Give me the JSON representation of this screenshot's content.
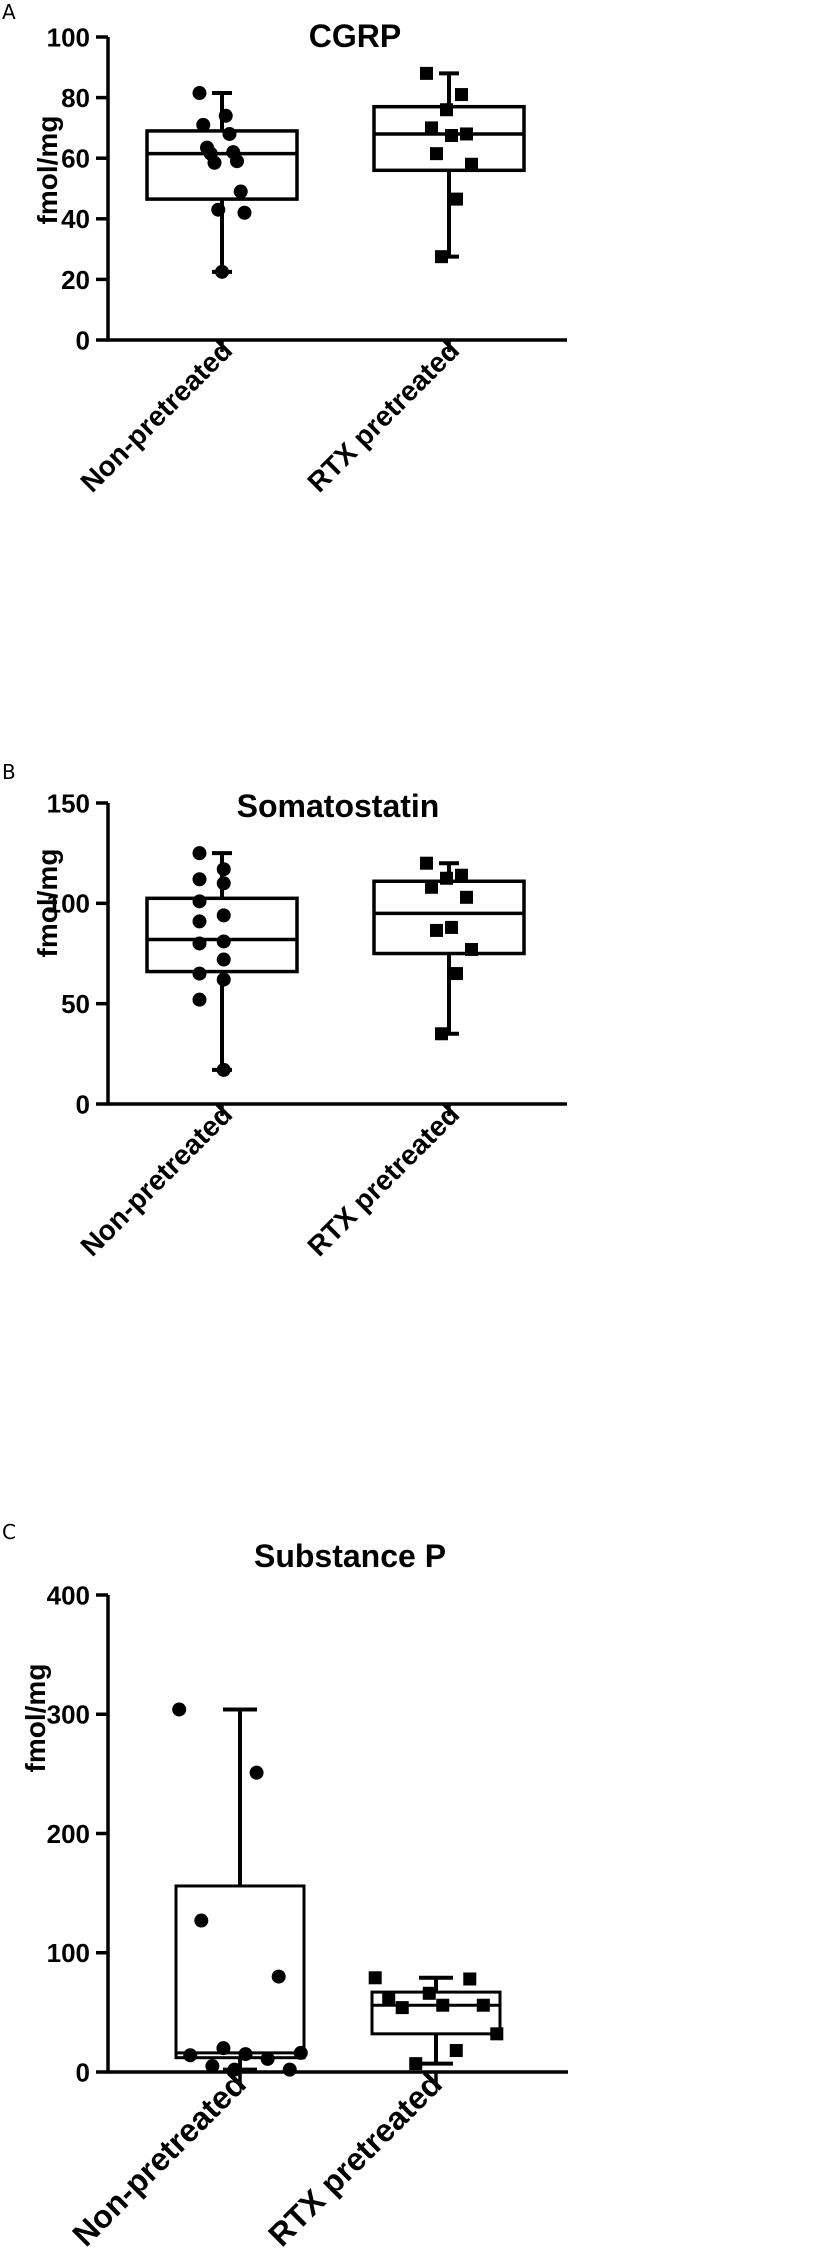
{
  "chart_data": [
    {
      "type": "box",
      "panel": "A",
      "title": "CGRP",
      "ylabel": "fmol/mg",
      "xlabel": "",
      "ylim": [
        0,
        100
      ],
      "yticks": [
        0,
        20,
        40,
        60,
        80,
        100
      ],
      "categories": [
        "Non-pretreated",
        "RTX pretreated"
      ],
      "series": [
        {
          "marker": "circle",
          "box": {
            "min": 22.5,
            "q1": 46.5,
            "median": 61.5,
            "q3": 69,
            "max": 81.5
          },
          "points": [
            81.5,
            74,
            71,
            68,
            63.5,
            62,
            61.5,
            59,
            58.5,
            49,
            43,
            42,
            22.5
          ]
        },
        {
          "marker": "square",
          "box": {
            "min": 27.5,
            "q1": 56,
            "median": 68,
            "q3": 77,
            "max": 88
          },
          "points": [
            88,
            81,
            76,
            70,
            68,
            67.5,
            61.5,
            58,
            46.5,
            27.5
          ]
        }
      ]
    },
    {
      "type": "box",
      "panel": "B",
      "title": "Somatostatin",
      "ylabel": "fmol/mg",
      "xlabel": "",
      "ylim": [
        0,
        150
      ],
      "yticks": [
        0,
        50,
        100,
        150
      ],
      "categories": [
        "Non-pretreated",
        "RTX pretreated"
      ],
      "series": [
        {
          "marker": "circle",
          "box": {
            "min": 17,
            "q1": 66,
            "median": 82,
            "q3": 102.5,
            "max": 125
          },
          "points": [
            125,
            117,
            112,
            110,
            101,
            94,
            91,
            81,
            80,
            72,
            65,
            62,
            52,
            17
          ]
        },
        {
          "marker": "square",
          "box": {
            "min": 35,
            "q1": 75,
            "median": 95,
            "q3": 111,
            "max": 120
          },
          "points": [
            120,
            114,
            112.5,
            108,
            103,
            88,
            86.5,
            77,
            65,
            35
          ]
        }
      ]
    },
    {
      "type": "box",
      "panel": "C",
      "title": "Substance P",
      "ylabel": "fmol/mg",
      "xlabel": "",
      "ylim": [
        0,
        400
      ],
      "yticks": [
        0,
        100,
        200,
        300,
        400
      ],
      "categories": [
        "Non-pretreated",
        "RTX pretreated"
      ],
      "series": [
        {
          "marker": "circle",
          "box": {
            "min": 2,
            "q1": 12,
            "median": 16,
            "q3": 156,
            "max": 304
          },
          "points": [
            304,
            251,
            127,
            80,
            20,
            16,
            15,
            14,
            11,
            5,
            2,
            2
          ]
        },
        {
          "marker": "square",
          "box": {
            "min": 7,
            "q1": 32,
            "median": 56,
            "q3": 67,
            "max": 79
          },
          "points": [
            79,
            78,
            66,
            61,
            56,
            56,
            54,
            32,
            18,
            7
          ]
        }
      ]
    }
  ],
  "panels": [
    {
      "letter": "A"
    },
    {
      "letter": "B"
    },
    {
      "letter": "C"
    }
  ]
}
